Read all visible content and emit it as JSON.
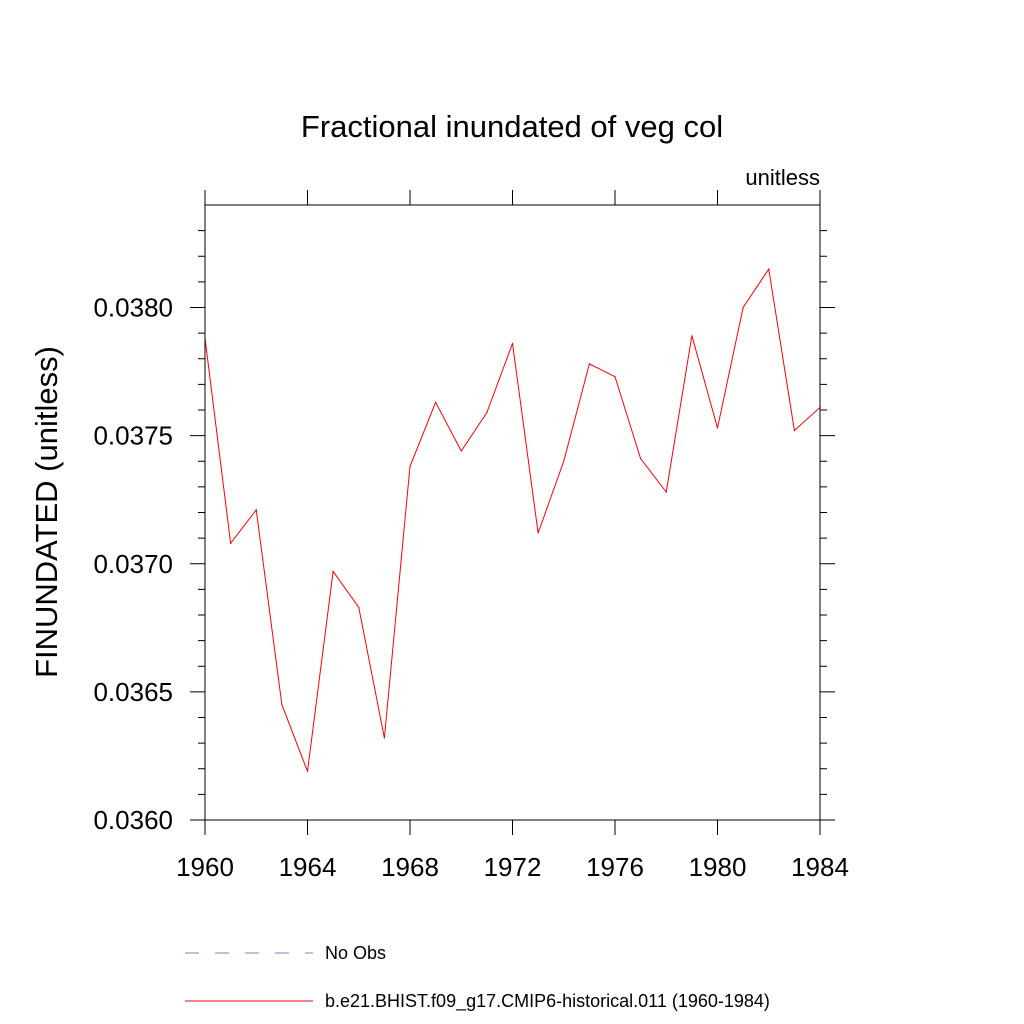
{
  "chart_data": {
    "type": "line",
    "title": "Fractional inundated of veg col",
    "units_label": "unitless",
    "ylabel": "FINUNDATED  (unitless)",
    "xlabel": "",
    "xlim": [
      1960,
      1984
    ],
    "ylim": [
      0.036,
      0.0384
    ],
    "x_ticks": [
      1960,
      1964,
      1968,
      1972,
      1976,
      1980,
      1984
    ],
    "x_tick_labels": [
      "1960",
      "1964",
      "1968",
      "1972",
      "1976",
      "1980",
      "1984"
    ],
    "y_ticks": [
      0.036,
      0.0365,
      0.037,
      0.0375,
      0.038
    ],
    "y_tick_labels": [
      "0.0360",
      "0.0365",
      "0.0370",
      "0.0375",
      "0.0380"
    ],
    "grid": false,
    "legend_position": "bottom",
    "series": [
      {
        "name": "b.e21.BHIST.f09_g17.CMIP6-historical.011 (1960-1984)",
        "color": "#ff0000",
        "style": "solid",
        "x": [
          1960,
          1961,
          1962,
          1963,
          1964,
          1965,
          1966,
          1967,
          1968,
          1969,
          1970,
          1971,
          1972,
          1973,
          1974,
          1975,
          1976,
          1977,
          1978,
          1979,
          1980,
          1981,
          1982,
          1983,
          1984
        ],
        "y": [
          0.03788,
          0.03708,
          0.03721,
          0.03645,
          0.03619,
          0.03697,
          0.03683,
          0.03632,
          0.03738,
          0.03763,
          0.03744,
          0.03759,
          0.03786,
          0.03712,
          0.0374,
          0.03778,
          0.03773,
          0.03741,
          0.03728,
          0.03789,
          0.03753,
          0.038,
          0.03815,
          0.03752,
          0.03761
        ]
      },
      {
        "name": "No Obs",
        "color": "#8080c0",
        "style": "dashed",
        "x": [],
        "y": []
      }
    ]
  }
}
